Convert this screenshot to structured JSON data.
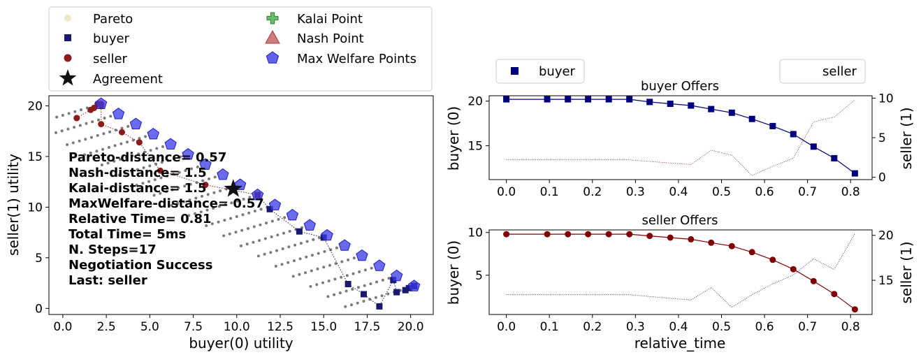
{
  "chart_data": [
    {
      "type": "scatter",
      "xlabel": "buyer(0) utility",
      "ylabel": "seller(1) utility",
      "xlim": [
        -0.8,
        21.3
      ],
      "ylim": [
        -0.6,
        21.0
      ],
      "xticks": [
        0,
        2.5,
        5,
        7.5,
        10,
        12.5,
        15,
        17.5,
        20
      ],
      "xtick_labels": [
        "0.0",
        "2.5",
        "5.0",
        "7.5",
        "10.0",
        "12.5",
        "15.0",
        "17.5",
        "20.0"
      ],
      "yticks": [
        0,
        5,
        10,
        15,
        20
      ],
      "ytick_labels": [
        "0",
        "5",
        "10",
        "15",
        "20"
      ],
      "legend": {
        "placement": "top (above axes, 2 columns)",
        "entries": [
          {
            "label": "Pareto",
            "marker": "circle",
            "color": "#EFE8C0"
          },
          {
            "label": "buyer",
            "marker": "square",
            "color": "#191970"
          },
          {
            "label": "seller",
            "marker": "circle",
            "color": "#8B1A1A"
          },
          {
            "label": "Agreement",
            "marker": "star",
            "color": "#111111"
          },
          {
            "label": "Kalai Point",
            "marker": "plus",
            "color": "#4CAF50"
          },
          {
            "label": "Nash Point",
            "marker": "triangle",
            "color": "#C86464"
          },
          {
            "label": "Max Welfare Points",
            "marker": "pentagon",
            "color": "#3A3AE6"
          }
        ]
      },
      "stats_text": [
        "Pareto-distance= 0.57",
        "Nash-distance=  1.5",
        "Kalai-distance=  1.5",
        "MaxWelfare-distance= 0.57",
        "Relative Time= 0.81",
        "Total Time= 5ms",
        "N. Steps=17",
        "Negotiation Success",
        "Last: seller"
      ],
      "max_welfare_points": [
        [
          2.2,
          20.2
        ],
        [
          3.2,
          19.2
        ],
        [
          4.2,
          18.2
        ],
        [
          5.2,
          17.2
        ],
        [
          6.2,
          16.2
        ],
        [
          7.2,
          15.2
        ],
        [
          8.2,
          14.2
        ],
        [
          9.2,
          13.2
        ],
        [
          10.2,
          12.2
        ],
        [
          11.2,
          11.2
        ],
        [
          12.2,
          10.2
        ],
        [
          13.2,
          9.2
        ],
        [
          14.2,
          8.2
        ],
        [
          15.2,
          7.2
        ],
        [
          16.2,
          6.2
        ],
        [
          17.2,
          5.2
        ],
        [
          18.2,
          4.2
        ],
        [
          19.2,
          3.2
        ],
        [
          20.2,
          2.2
        ]
      ],
      "buyer_offers": [
        [
          20.2,
          2.2
        ],
        [
          20.2,
          2.2
        ],
        [
          20.2,
          2.2
        ],
        [
          20.2,
          2.2
        ],
        [
          20.2,
          2.2
        ],
        [
          19.9,
          2.0
        ],
        [
          19.7,
          1.8
        ],
        [
          19.2,
          1.6
        ],
        [
          19.0,
          2.8
        ],
        [
          18.2,
          0.2
        ],
        [
          17.3,
          1.4
        ],
        [
          16.4,
          2.4
        ],
        [
          15.0,
          7.0
        ],
        [
          13.6,
          7.6
        ],
        [
          11.9,
          9.8
        ],
        [
          11.2,
          11.2
        ]
      ],
      "seller_offers": [
        [
          0.8,
          18.8
        ],
        [
          0.8,
          18.8
        ],
        [
          1.6,
          19.6
        ],
        [
          1.8,
          19.8
        ],
        [
          2.0,
          20.2
        ],
        [
          2.2,
          20.2
        ],
        [
          2.2,
          20.0
        ],
        [
          2.2,
          18.2
        ],
        [
          3.4,
          17.4
        ],
        [
          4.4,
          16.4
        ],
        [
          5.6,
          13.6
        ],
        [
          8.2,
          12.2
        ],
        [
          11.2,
          11.2
        ]
      ],
      "agreement": [
        9.8,
        11.8
      ]
    },
    {
      "type": "line",
      "title": "buyer Offers",
      "xlabel": "",
      "ylabel": "buyer (0)",
      "ylabel_right": "seller (1)",
      "xlim": [
        -0.04,
        0.85
      ],
      "ylim": [
        11.2,
        20.6
      ],
      "ylim_right": [
        -0.3,
        10.3
      ],
      "xticks": [
        0,
        0.1,
        0.2,
        0.3,
        0.4,
        0.5,
        0.6,
        0.7,
        0.8
      ],
      "xtick_labels": [
        "0.0",
        "0.1",
        "0.2",
        "0.3",
        "0.4",
        "0.5",
        "0.6",
        "0.7",
        "0.8"
      ],
      "yticks": [
        15,
        20
      ],
      "ytick_labels": [
        "15",
        "20"
      ],
      "yticks_right": [
        0,
        5,
        10
      ],
      "ytick_labels_right": [
        "0",
        "5",
        "10"
      ],
      "legend": [
        {
          "label": "buyer",
          "placement": "upper-left"
        },
        {
          "label": "seller",
          "placement": "upper-right"
        }
      ],
      "x": [
        0.0,
        0.095,
        0.143,
        0.19,
        0.238,
        0.286,
        0.333,
        0.381,
        0.429,
        0.476,
        0.524,
        0.571,
        0.619,
        0.667,
        0.714,
        0.762,
        0.81
      ],
      "series": [
        {
          "name": "buyer",
          "axis": "left",
          "color": "#00007F",
          "marker": "square",
          "values": [
            20.2,
            20.2,
            20.2,
            20.2,
            20.2,
            20.2,
            19.9,
            19.7,
            19.5,
            19.1,
            18.7,
            18.0,
            17.2,
            16.3,
            14.9,
            13.6,
            11.9
          ]
        },
        {
          "name": "seller",
          "axis": "right",
          "color": "#8B1A1A",
          "style": "dotted",
          "values": [
            2.2,
            2.2,
            2.2,
            2.2,
            2.2,
            2.2,
            2.0,
            1.8,
            1.6,
            3.4,
            2.8,
            0.2,
            1.4,
            2.4,
            7.0,
            7.6,
            9.8
          ]
        }
      ]
    },
    {
      "type": "line",
      "title": "seller Offers",
      "xlabel": "relative_time",
      "ylabel": "buyer (0)",
      "ylabel_right": "seller (1)",
      "xlim": [
        -0.04,
        0.85
      ],
      "ylim": [
        0.4,
        10.3
      ],
      "ylim_right": [
        11.2,
        20.6
      ],
      "xticks": [
        0,
        0.1,
        0.2,
        0.3,
        0.4,
        0.5,
        0.6,
        0.7,
        0.8
      ],
      "xtick_labels": [
        "0.0",
        "0.1",
        "0.2",
        "0.3",
        "0.4",
        "0.5",
        "0.6",
        "0.7",
        "0.8"
      ],
      "yticks": [
        5,
        10
      ],
      "ytick_labels": [
        "5",
        "10"
      ],
      "yticks_right": [
        15,
        20
      ],
      "ytick_labels_right": [
        "15",
        "20"
      ],
      "x": [
        0.0,
        0.095,
        0.143,
        0.19,
        0.238,
        0.286,
        0.333,
        0.381,
        0.429,
        0.476,
        0.524,
        0.571,
        0.619,
        0.667,
        0.714,
        0.762,
        0.81
      ],
      "series": [
        {
          "name": "seller",
          "axis": "left",
          "color": "#7F0000",
          "marker": "circle",
          "values": [
            9.8,
            9.8,
            9.8,
            9.8,
            9.8,
            9.8,
            9.6,
            9.4,
            9.2,
            8.8,
            8.4,
            7.7,
            6.8,
            5.7,
            4.3,
            2.8,
            1.0
          ]
        },
        {
          "name": "buyer",
          "axis": "right",
          "color": "#1A1A8B",
          "style": "dotted",
          "values": [
            13.4,
            13.4,
            13.4,
            13.4,
            13.4,
            13.4,
            13.2,
            13.0,
            12.8,
            14.2,
            12.0,
            13.4,
            14.6,
            15.6,
            17.4,
            16.2,
            20.2
          ]
        }
      ]
    }
  ]
}
